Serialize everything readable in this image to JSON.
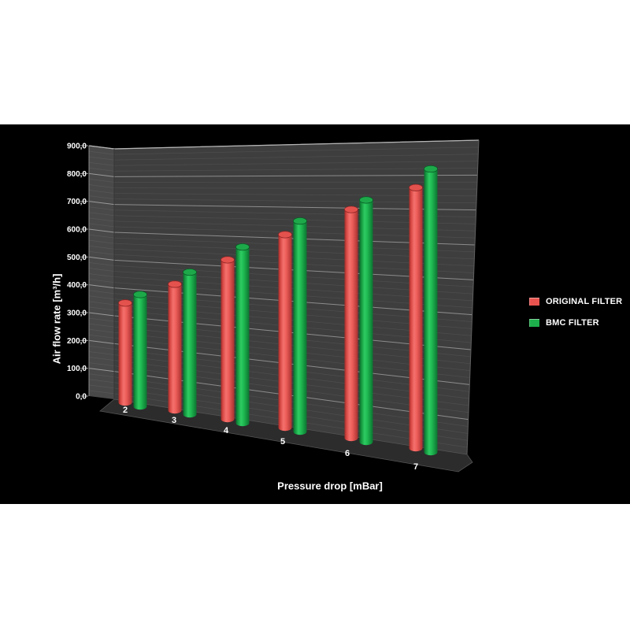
{
  "page": {
    "background_color": "#ffffff",
    "panel_background_color": "#000000"
  },
  "chart_data": {
    "type": "bar",
    "style": "3d-cylinder",
    "title": "",
    "xlabel": "Pressure drop [mBar]",
    "ylabel": "Air flow rate [m³/h]",
    "categories": [
      "2",
      "3",
      "4",
      "5",
      "6",
      "7"
    ],
    "series": [
      {
        "name": "ORIGINAL FILTER",
        "color": "#e8534f",
        "values": [
          350,
          430,
          525,
          615,
          700,
          770
        ]
      },
      {
        "name": "BMC FILTER",
        "color": "#1daf4b",
        "values": [
          390,
          480,
          575,
          665,
          735,
          830
        ]
      }
    ],
    "ylim": [
      0,
      900
    ],
    "ytick_step": 100,
    "ytick_minor_step": 20,
    "ytick_labels": [
      "0,0",
      "100,0",
      "200,0",
      "300,0",
      "400,0",
      "500,0",
      "600,0",
      "700,0",
      "800,0",
      "900,0"
    ],
    "decimal_separator": ",",
    "grid": true,
    "legend_position": "right",
    "wall_color": "#3e3e3e",
    "side_wall_color": "#494949",
    "floor_color": "#2c2c2c",
    "major_grid_color": "#8c8c8c",
    "minor_grid_color": "#4d4d4d",
    "text_color": "#ffffff"
  }
}
